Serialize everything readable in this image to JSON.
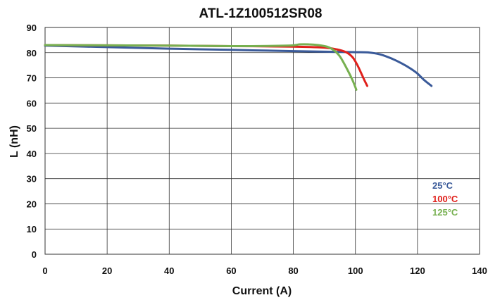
{
  "chart_data": {
    "type": "line",
    "title": "ATL-1Z100512SR08",
    "xlabel": "Current (A)",
    "ylabel": "L (nH)",
    "xlim": [
      0,
      140
    ],
    "ylim": [
      0,
      90
    ],
    "xticks": [
      0,
      20,
      40,
      60,
      80,
      100,
      120,
      140
    ],
    "yticks": [
      0,
      10,
      20,
      30,
      40,
      50,
      60,
      70,
      80,
      90
    ],
    "grid": true,
    "legend_position": "right",
    "series": [
      {
        "name": "25°C",
        "color": "#3A5A99",
        "x": [
          0,
          20,
          40,
          60,
          80,
          95,
          100,
          104,
          108,
          112,
          115,
          118,
          120,
          122,
          124.5
        ],
        "y": [
          82.8,
          82.2,
          81.6,
          81.1,
          80.6,
          80.3,
          80.2,
          80.1,
          79.3,
          77.5,
          75.7,
          73.5,
          71.7,
          69.3,
          66.8
        ]
      },
      {
        "name": "100°C",
        "color": "#E0201B",
        "x": [
          0,
          20,
          40,
          60,
          80,
          90,
          94,
          97,
          99,
          100.5,
          102,
          103,
          103.8
        ],
        "y": [
          83,
          82.9,
          82.8,
          82.6,
          82.4,
          82,
          81.3,
          80.2,
          78.3,
          75.4,
          71.5,
          68.8,
          66.8
        ]
      },
      {
        "name": "125°C",
        "color": "#77B050",
        "x": [
          0,
          20,
          40,
          60,
          78,
          82,
          85,
          88,
          91,
          93,
          95,
          97,
          99,
          100.3
        ],
        "y": [
          83,
          82.9,
          82.8,
          82.6,
          82.8,
          83.3,
          83.3,
          83,
          82.3,
          81,
          78.5,
          74.2,
          69.3,
          65.3
        ]
      }
    ]
  }
}
